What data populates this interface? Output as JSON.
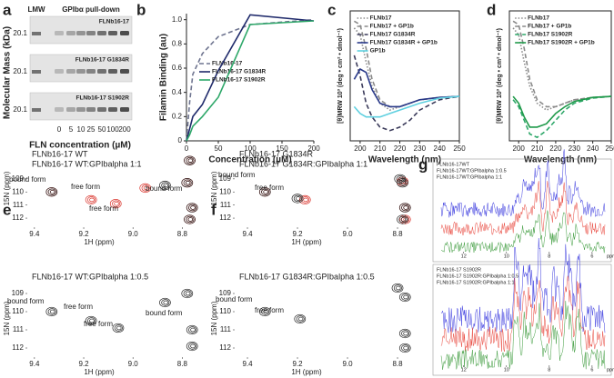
{
  "gel": {
    "label": "a",
    "lmw": "LMW",
    "title": "GPIbα pull-down",
    "ylabel": "Molecular Mass (kDa)",
    "xlabel": "FLN concentration (µM)",
    "lanes": [
      0,
      5,
      10,
      25,
      50,
      100,
      200
    ],
    "blots": [
      {
        "name": "FLNb16-17",
        "marker": 20.1
      },
      {
        "name": "FLNb16-17 G1834R",
        "marker": 20.1
      },
      {
        "name": "FLNb16-17 S1902R",
        "marker": 20.1
      }
    ]
  },
  "chart_data": [
    {
      "label": "b",
      "type": "line",
      "xlabel": "Concentration (µM)",
      "ylabel": "Filamin Binding (au)",
      "x": [
        0,
        5,
        10,
        25,
        50,
        100,
        200
      ],
      "xlim": [
        0,
        200
      ],
      "xticks": [
        0,
        50,
        100,
        150,
        200
      ],
      "ylim": [
        0,
        1.05
      ],
      "yticks": [
        0,
        0.2,
        0.4,
        0.6,
        0.8,
        {
          "value": 1,
          "label": "1.0"
        }
      ],
      "legend": "center right",
      "series": [
        {
          "name": "FLNb16-17",
          "color": "#6f7590",
          "style": "dashed",
          "values": [
            0,
            0.32,
            0.55,
            0.72,
            0.86,
            0.96,
            1.0
          ]
        },
        {
          "name": "FLNb16-17 G1834R",
          "color": "#1f2a6b",
          "style": "solid",
          "values": [
            0,
            0.1,
            0.2,
            0.3,
            0.58,
            1.04,
            0.99
          ]
        },
        {
          "name": "FLNb16-17 S1902R",
          "color": "#2fa86a",
          "style": "solid",
          "values": [
            0,
            0.05,
            0.12,
            0.2,
            0.36,
            0.96,
            0.99
          ]
        }
      ]
    },
    {
      "label": "c",
      "type": "line",
      "xlabel": "Wavelength (nm)",
      "ylabel": "[θ]MRW 10³ (deg • cm² • dmol⁻¹)",
      "x": [
        197,
        200,
        203,
        206,
        210,
        215,
        220,
        225,
        230,
        240,
        250
      ],
      "xlim": [
        195,
        250
      ],
      "xticks": [
        200,
        210,
        220,
        230,
        240,
        250
      ],
      "ylim": [
        -13,
        25
      ],
      "legend": "upper right",
      "series": [
        {
          "name": "FLNb17",
          "color": "#8a8a8a",
          "style": "dotted",
          "values": [
            20,
            18,
            10,
            3,
            -2,
            -4,
            -3,
            -2,
            -1,
            -0.3,
            0
          ]
        },
        {
          "name": "FLNb17 + GP1b",
          "color": "#8a8a8a",
          "style": "dashed",
          "values": [
            22,
            21,
            14,
            5,
            -1,
            -3,
            -3,
            -2,
            -1,
            -0.3,
            0
          ]
        },
        {
          "name": "FLNb17 G1834R",
          "color": "#3a3a5a",
          "style": "dashed",
          "values": [
            12,
            6,
            -2,
            -6,
            -9,
            -10,
            -9,
            -7,
            -4,
            -1,
            0
          ]
        },
        {
          "name": "FLNb17 G1834R + GP1b",
          "color": "#2a3a8a",
          "style": "solid",
          "values": [
            5,
            8,
            7,
            2,
            -2,
            -3,
            -3,
            -2,
            -1,
            -0.3,
            0
          ]
        },
        {
          "name": "GP1b",
          "color": "#5fd0e0",
          "style": "solid",
          "values": [
            -3,
            -5,
            -6,
            -6,
            -6,
            -5,
            -4,
            -3,
            -2,
            -0.5,
            0
          ]
        }
      ]
    },
    {
      "label": "d",
      "type": "line",
      "xlabel": "Wavelength (nm)",
      "ylabel": "[θ]MRW 10³ (deg • cm² • dmol⁻¹)",
      "x": [
        197,
        200,
        203,
        206,
        210,
        215,
        220,
        225,
        230,
        240,
        250
      ],
      "xlim": [
        195,
        250
      ],
      "xticks": [
        200,
        210,
        220,
        230,
        240,
        250
      ],
      "ylim": [
        -13,
        25
      ],
      "legend": "upper right",
      "series": [
        {
          "name": "FLNb17",
          "color": "#8a8a8a",
          "style": "dotted",
          "values": [
            20,
            18,
            10,
            3,
            -2,
            -4,
            -3,
            -2,
            -1,
            -0.3,
            0
          ]
        },
        {
          "name": "FLNb17 + GP1b",
          "color": "#8a8a8a",
          "style": "dashed",
          "values": [
            22,
            21,
            14,
            5,
            -1,
            -3,
            -3,
            -2,
            -1,
            -0.3,
            0
          ]
        },
        {
          "name": "FLNb17 S1902R",
          "color": "#2fa86a",
          "style": "dashed",
          "values": [
            -1,
            -3,
            -7,
            -11,
            -12,
            -10,
            -7,
            -4,
            -2,
            -0.5,
            0
          ]
        },
        {
          "name": "FLNb17 S1902R + GP1b",
          "color": "#1f9a4a",
          "style": "solid",
          "values": [
            0,
            -2,
            -6,
            -9,
            -9,
            -8,
            -5,
            -3,
            -1.5,
            -0.3,
            0
          ]
        }
      ]
    },
    {
      "label": "e",
      "type": "contour",
      "xlabel": "1H (ppm)",
      "ylabel": "15N (ppm)",
      "xlim": [
        9.429,
        8.698
      ],
      "xticks": [
        9.4,
        9.2,
        {
          "value": 9,
          "label": "9.0"
        },
        8.8
      ],
      "ylim": [
        112.69,
        106.79
      ],
      "yticks": [
        109,
        110,
        111,
        112
      ],
      "annotations": [
        "bound form",
        "free form",
        "free form",
        "bound form"
      ],
      "series": [
        {
          "name": "FLNb16-17 WT",
          "color": "#d9322a",
          "x": [
            9.33,
            9.17,
            9.07,
            8.95,
            8.78,
            8.76,
            8.77,
            8.77
          ],
          "y": [
            110.0,
            110.6,
            110.9,
            109.7,
            109.3,
            111.2,
            112.1,
            107.6
          ]
        },
        {
          "name": "FLNb16-17 WT:GPIbalpha 1:1",
          "color": "#222222",
          "x": [
            9.33,
            8.87,
            8.78,
            8.76,
            8.77,
            8.77
          ],
          "y": [
            110.0,
            109.5,
            109.3,
            111.2,
            112.1,
            107.6
          ]
        }
      ]
    },
    {
      "type": "contour",
      "xlabel": "1H (ppm)",
      "ylabel": "15N (ppm)",
      "xlim": [
        9.429,
        8.698
      ],
      "xticks": [
        9.4,
        9.2,
        {
          "value": 9,
          "label": "9.0"
        },
        8.8
      ],
      "ylim": [
        112.5,
        108.25
      ],
      "yticks": [
        109,
        110,
        111,
        112
      ],
      "annotations": [
        "bound form",
        "free form",
        "free form",
        "bound form"
      ],
      "series": [
        {
          "name": "FLNb16-17 WT:GPIbalpha 1:0.5",
          "color": "#222222",
          "x": [
            9.33,
            9.17,
            9.06,
            8.87,
            8.78,
            8.76,
            8.76
          ],
          "y": [
            110.0,
            110.5,
            110.9,
            109.5,
            109.0,
            111.0,
            111.9
          ]
        }
      ]
    },
    {
      "label": "f",
      "type": "contour",
      "xlabel": "1H (ppm)",
      "ylabel": "15N (ppm)",
      "xlim": [
        9.451,
        8.731
      ],
      "xticks": [
        9.4,
        9.2,
        {
          "value": 9,
          "label": "9.0"
        },
        8.8
      ],
      "ylim": [
        112.69,
        106.79
      ],
      "yticks": [
        109,
        110,
        111,
        112
      ],
      "annotations": [
        "bound form",
        "free form"
      ],
      "series": [
        {
          "name": "FLNb16-17 G1834R",
          "color": "#d9322a",
          "x": [
            9.33,
            9.17,
            8.78,
            8.77,
            8.77
          ],
          "y": [
            110.0,
            110.6,
            109.2,
            111.2,
            112.1
          ]
        },
        {
          "name": "FLNb16-17 G1834R:GPIbalpha 1:1",
          "color": "#222222",
          "x": [
            9.33,
            9.2,
            8.79,
            8.78,
            8.77,
            8.78
          ],
          "y": [
            110.0,
            110.5,
            109.0,
            109.3,
            111.2,
            112.1
          ]
        }
      ]
    },
    {
      "type": "contour",
      "xlabel": "1H (ppm)",
      "ylabel": "15N (ppm)",
      "xlim": [
        9.451,
        8.731
      ],
      "xticks": [
        9.4,
        9.2,
        {
          "value": 9,
          "label": "9.0"
        },
        8.8
      ],
      "ylim": [
        112.5,
        108.25
      ],
      "yticks": [
        109,
        110,
        111,
        112
      ],
      "annotations": [
        "bound form",
        "free form"
      ],
      "series": [
        {
          "name": "FLNb16-17 G1834R:GPIbalpha 1:0.5",
          "color": "#222222",
          "x": [
            9.33,
            9.19,
            8.8,
            8.77,
            8.77,
            8.77
          ],
          "y": [
            110.0,
            110.4,
            108.7,
            109.2,
            111.2,
            112.0
          ]
        }
      ]
    },
    {
      "label": "g",
      "type": "spectrum",
      "xlabel": "ppm",
      "xlim": [
        13.05,
        5.4
      ],
      "xticks": [
        12,
        10,
        8,
        6
      ],
      "series": [
        {
          "name": "FLNb16-17WT",
          "color": "#3a3adf"
        },
        {
          "name": "FLNb16-17WT:GPIbalpha 1:0.5",
          "color": "#e8443a"
        },
        {
          "name": "FLNb16-17WT:GPIbalpha 1:1",
          "color": "#3a9a3a"
        }
      ]
    },
    {
      "type": "spectrum",
      "xlabel": "ppm",
      "xlim": [
        13.05,
        5.4
      ],
      "xticks": [
        12,
        10,
        8,
        6
      ],
      "series": [
        {
          "name": "FLNb16-17 S1902R",
          "color": "#3a3adf"
        },
        {
          "name": "FLNb16-17 S1902R:GPIbalpha 1:0.5",
          "color": "#e8443a"
        },
        {
          "name": "FLNb16-17 S1902R:GPIbalpha 1:1",
          "color": "#3a9a3a"
        }
      ]
    }
  ]
}
